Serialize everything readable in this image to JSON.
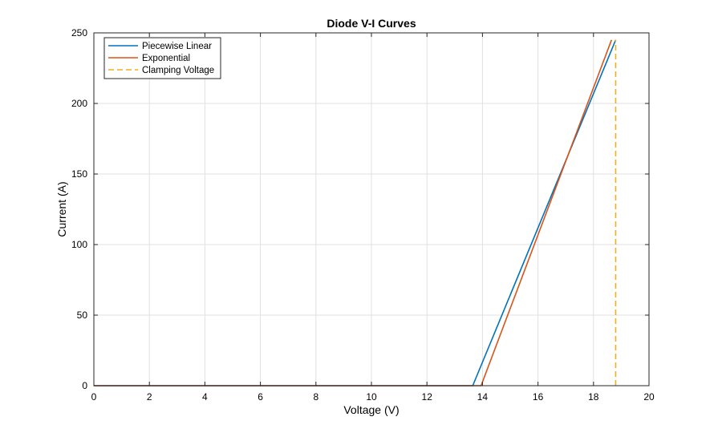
{
  "chart_data": {
    "type": "line",
    "title": "Diode V-I Curves",
    "xlabel": "Voltage (V)",
    "ylabel": "Current (A)",
    "xlim": [
      0,
      20
    ],
    "ylim": [
      0,
      250
    ],
    "xticks": [
      0,
      2,
      4,
      6,
      8,
      10,
      12,
      14,
      16,
      18,
      20
    ],
    "yticks": [
      0,
      50,
      100,
      150,
      200,
      250
    ],
    "grid": true,
    "legend_position": "top-left",
    "series": [
      {
        "name": "Piecewise Linear",
        "color": "#0072BD",
        "style": "solid",
        "x": [
          0,
          13.65,
          18.8
        ],
        "y": [
          0,
          0,
          245
        ]
      },
      {
        "name": "Exponential",
        "color": "#D95319",
        "style": "solid",
        "x": [
          0,
          13.95,
          18.65
        ],
        "y": [
          0,
          0,
          245
        ]
      },
      {
        "name": "Clamping Voltage",
        "color": "#EDB120",
        "style": "dashed",
        "x": [
          18.8,
          18.8
        ],
        "y": [
          0,
          245
        ]
      }
    ]
  }
}
